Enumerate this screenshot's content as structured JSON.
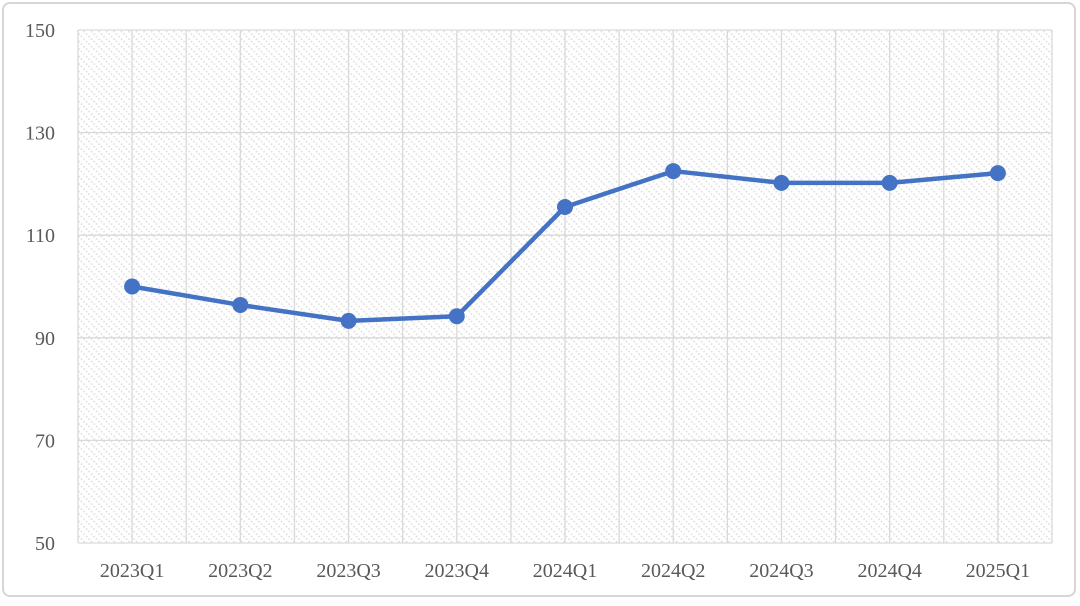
{
  "chart_data": {
    "type": "line",
    "title": "",
    "xlabel": "",
    "ylabel": "",
    "categories": [
      "2023Q1",
      "2023Q2",
      "2023Q3",
      "2023Q4",
      "2024Q1",
      "2024Q2",
      "2024Q3",
      "2024Q4",
      "2025Q1"
    ],
    "values": [
      100.0,
      96.4,
      93.3,
      94.2,
      115.5,
      122.5,
      120.2,
      120.2,
      122.1
    ],
    "ylim": [
      50,
      150
    ],
    "y_ticks": [
      50,
      70,
      90,
      110,
      130,
      150
    ],
    "grid": true,
    "legend": false,
    "marker": "circle",
    "plot_area_fill": "light-downward-diagonal-hatch",
    "colors": {
      "line": "#4472C4",
      "marker": "#4472C4",
      "gridline": "#d9d9d9",
      "tick_label": "#595959",
      "hatch": "#e2e2e2",
      "frame_border": "#d6d6d6",
      "background": "#ffffff"
    },
    "tick_font_size_px": 20
  }
}
